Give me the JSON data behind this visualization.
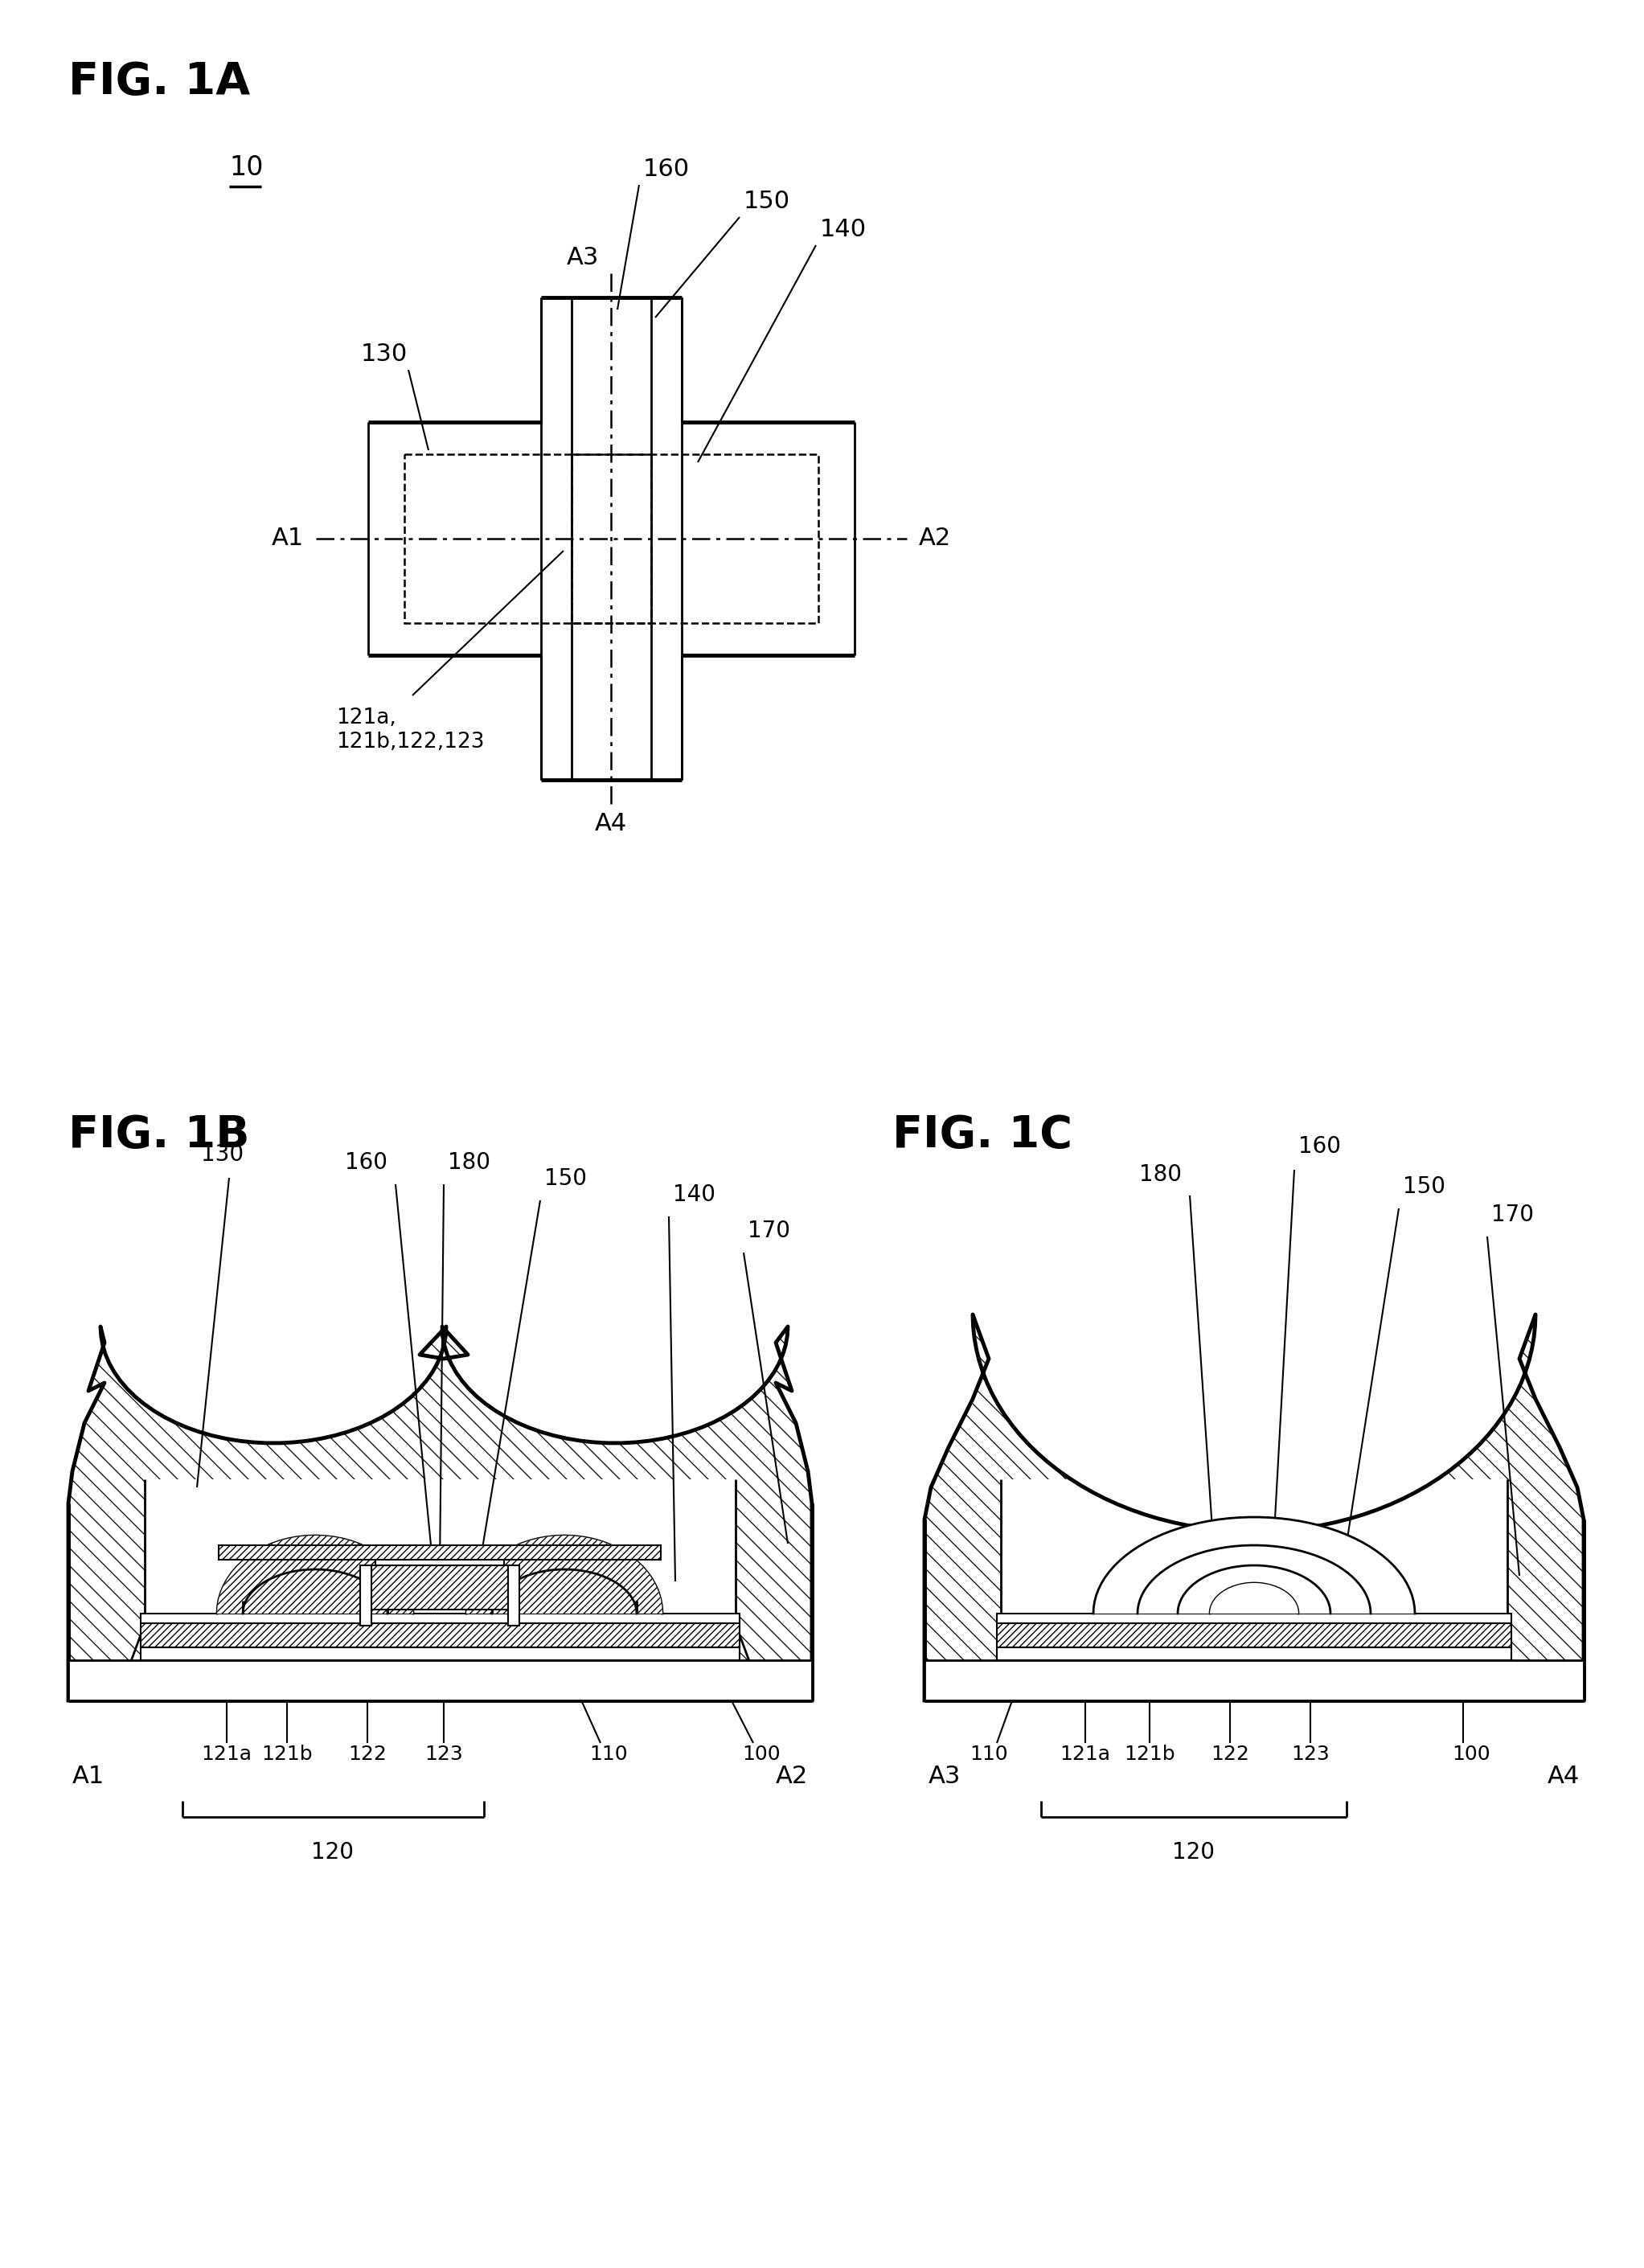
{
  "bg_color": "#ffffff",
  "fig1a_label": "FIG. 1A",
  "fig1b_label": "FIG. 1B",
  "fig1c_label": "FIG. 1C",
  "label_10": "10",
  "label_160": "160",
  "label_150": "150",
  "label_140": "140",
  "label_130": "130",
  "label_A1": "A1",
  "label_A2": "A2",
  "label_A3": "A3",
  "label_A4": "A4",
  "label_121ab_122_123": "121a,\n121b,122,123",
  "label_180": "180",
  "label_170": "170",
  "label_120": "120",
  "label_110": "110",
  "label_100": "100",
  "label_121a": "121a",
  "label_121b": "121b",
  "label_122": "122",
  "label_123": "123"
}
